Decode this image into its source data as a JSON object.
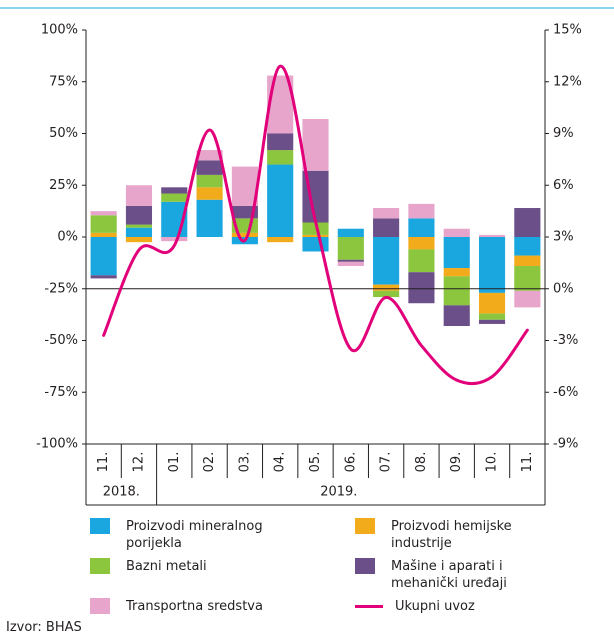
{
  "chart_data": {
    "type": "bar",
    "stacked": true,
    "categories": [
      "11.",
      "12.",
      "01.",
      "02.",
      "03.",
      "04.",
      "05.",
      "06.",
      "07.",
      "08.",
      "09.",
      "10.",
      "11."
    ],
    "year_labels": [
      "2018.",
      "2019."
    ],
    "series": [
      {
        "name": "Proizvodi mineralnog porijekla",
        "color": "#1aa7e0",
        "values": [
          -18.5,
          4.5,
          17,
          18,
          -3.5,
          35,
          -7,
          4,
          -23,
          9,
          -15,
          -27,
          -9
        ]
      },
      {
        "name": "Proizvodi hemijske industrije",
        "color": "#f2ab1b",
        "values": [
          2,
          -2.5,
          0,
          6,
          2,
          -2.5,
          1,
          0,
          -3,
          -6,
          -4,
          -10,
          -5
        ]
      },
      {
        "name": "Bazni metali",
        "color": "#8cc63e",
        "values": [
          8.5,
          1.5,
          4,
          6,
          7,
          7,
          6,
          -11,
          -3,
          -11,
          -14,
          -3,
          -12
        ]
      },
      {
        "name": "Mašine i aparati i mehanički uređaji",
        "color": "#6b4f88",
        "values": [
          -1.5,
          9,
          3,
          7,
          6,
          8,
          25,
          -1,
          9,
          -15,
          -10,
          -2,
          14
        ]
      },
      {
        "name": "Transportna sredstva",
        "color": "#e8a5cb",
        "values": [
          2,
          10,
          -2,
          5,
          19,
          28,
          25,
          -2,
          5,
          7,
          4,
          1,
          -8
        ]
      },
      {
        "name": "Ukupni uvoz",
        "color": "#e2007a",
        "type": "line",
        "axis": "y2",
        "values": [
          -2.7,
          2.25,
          2.5,
          9.2,
          2.8,
          12.9,
          3.9,
          -3.5,
          -0.5,
          -3.3,
          -5.3,
          -5.1,
          -2.4
        ]
      }
    ],
    "ylim": [
      -100,
      100
    ],
    "yticks": [
      {
        "value": -100,
        "label": "-100%"
      },
      {
        "value": -75,
        "label": "-75%"
      },
      {
        "value": -50,
        "label": "-50%"
      },
      {
        "value": -25,
        "label": "-25%"
      },
      {
        "value": 0,
        "label": "0%"
      },
      {
        "value": 25,
        "label": "25%"
      },
      {
        "value": 50,
        "label": "50%"
      },
      {
        "value": 75,
        "label": "75%"
      },
      {
        "value": 100,
        "label": "100%"
      }
    ],
    "y2lim": [
      -9,
      15
    ],
    "y2ticks": [
      {
        "value": -9,
        "label": "-9%"
      },
      {
        "value": -6,
        "label": "-6%"
      },
      {
        "value": -3,
        "label": "-3%"
      },
      {
        "value": 0,
        "label": "0%"
      },
      {
        "value": 3,
        "label": "3%"
      },
      {
        "value": 6,
        "label": "6%"
      },
      {
        "value": 9,
        "label": "9%"
      },
      {
        "value": 12,
        "label": "12%"
      },
      {
        "value": 15,
        "label": "15%"
      }
    ],
    "source": "Izvor: BHAS"
  }
}
